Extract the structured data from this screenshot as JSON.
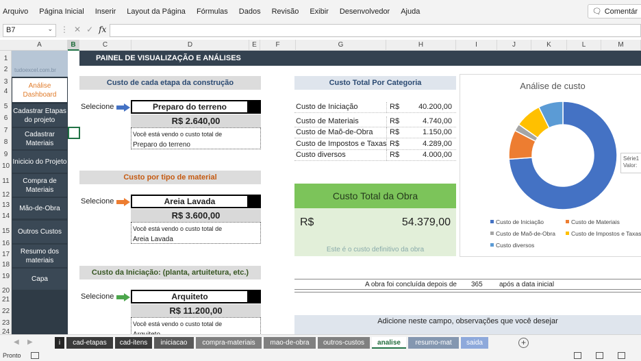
{
  "menu": [
    "Arquivo",
    "Página Inicial",
    "Inserir",
    "Layout da Página",
    "Fórmulas",
    "Dados",
    "Revisão",
    "Exibir",
    "Desenvolvedor",
    "Ajuda"
  ],
  "comments_label": "Comentár",
  "namebox": "B7",
  "fx_label": "fx",
  "columns": [
    {
      "l": "A",
      "sel": false
    },
    {
      "l": "B",
      "sel": true
    },
    {
      "l": "C",
      "sel": false
    },
    {
      "l": "D",
      "sel": false
    },
    {
      "l": "E",
      "sel": false
    },
    {
      "l": "F",
      "sel": false
    },
    {
      "l": "G",
      "sel": false
    },
    {
      "l": "H",
      "sel": false
    },
    {
      "l": "I",
      "sel": false
    },
    {
      "l": "J",
      "sel": false
    },
    {
      "l": "K",
      "sel": false
    },
    {
      "l": "L",
      "sel": false
    },
    {
      "l": "M",
      "sel": false
    }
  ],
  "rows": [
    "1",
    "2",
    "3",
    "4",
    "5",
    "6",
    "7",
    "8",
    "9",
    "10",
    "11",
    "12",
    "13",
    "14",
    "15",
    "16",
    "17",
    "18",
    "19",
    "20",
    "21",
    "22",
    "23",
    "24"
  ],
  "sidebar": {
    "logo": "tudoexcel.com.br",
    "items": [
      "Análise Dashboard",
      "Cadastrar Etapas do projeto",
      "Cadastrar Materiais",
      "Inicicio do Projeto",
      "Compra de Materiais",
      "Mão-de-Obra",
      "Outros Custos",
      "Resumo dos materiais",
      "Capa"
    ]
  },
  "banner": "PAINEL DE VISUALIZAÇÃO E ANÁLISES",
  "sections": [
    {
      "title": "Custo de cada etapa da construção",
      "color": "#2b4a72",
      "selecione": "Selecione",
      "arrow": "#4472c4",
      "selected": "Preparo do terreno",
      "value": "R$ 2.640,00",
      "note1": "Você está vendo o custo total de",
      "note2": "Preparo do terreno"
    },
    {
      "title": "Custo por tipo de material",
      "color": "#c55a11",
      "selecione": "Selecione",
      "arrow": "#ed7d31",
      "selected": "Areia Lavada",
      "value": "R$ 3.600,00",
      "note1": "Você está vendo o custo total de",
      "note2": "Areia Lavada"
    },
    {
      "title": "Custo da Iniciação: (planta, artuitetura, etc.)",
      "color": "#375623",
      "selecione": "Selecione",
      "arrow": "#4ca64c",
      "selected": "Arquiteto",
      "value": "R$ 11.200,00",
      "note1": "Você está vendo o custo total de",
      "note2": "Arquiteto"
    }
  ],
  "categories": {
    "title": "Custo Total Por Categoria",
    "rows": [
      {
        "label": "Custo de Iniciação",
        "cur": "R$",
        "amount": "40.200,00"
      },
      {
        "label": "Custo de Materiais",
        "cur": "R$",
        "amount": "4.740,00"
      },
      {
        "label": "Custo de Maõ-de-Obra",
        "cur": "R$",
        "amount": "1.150,00"
      },
      {
        "label": "Custo de Impostos e Taxas",
        "cur": "R$",
        "amount": "4.289,00"
      },
      {
        "label": "Custo diversos",
        "cur": "R$",
        "amount": "4.000,00"
      }
    ]
  },
  "total": {
    "title": "Custo Total da Obra",
    "cur": "R$",
    "amount": "54.379,00",
    "note": "Este é o custo definitivo da obra"
  },
  "chart_data": {
    "type": "pie",
    "title": "Análise de custo",
    "categories": [
      "Custo de Iniciação",
      "Custo de Materiais",
      "Custo de Maõ-de-Obra",
      "Custo de Impostos e Taxas",
      "Custo diversos"
    ],
    "values": [
      40200,
      4740,
      1150,
      4289,
      4000
    ],
    "colors": [
      "#4472c4",
      "#ed7d31",
      "#a5a5a5",
      "#ffc000",
      "#5b9bd5"
    ],
    "donut": true,
    "legend": "bottom",
    "tooltip_1": "Série1 P",
    "tooltip_2": "Valor: "
  },
  "done": {
    "text": "A obra foi concluída depois de",
    "days": "365",
    "after": "após a data inicial"
  },
  "obs": "Adicione neste campo, observações que você desejar",
  "tabs": [
    {
      "label": "i",
      "bg": "#262626",
      "w": 14
    },
    {
      "label": "cad-etapas",
      "bg": "#3a3a3a",
      "w": 68
    },
    {
      "label": "cad-itens",
      "bg": "#3a3a3a",
      "w": 54
    },
    {
      "label": "iniciacao",
      "bg": "#595959",
      "w": 58
    },
    {
      "label": "compra-materiais",
      "bg": "#7f7f7f",
      "w": 96
    },
    {
      "label": "mao-de-obra",
      "bg": "#808080",
      "w": 76
    },
    {
      "label": "outros-custos",
      "bg": "#808080",
      "w": 76
    },
    {
      "label": "analise",
      "bg": "#ffffff",
      "w": 50,
      "active": true
    },
    {
      "label": "resumo-mat",
      "bg": "#8497b0",
      "w": 74
    },
    {
      "label": "saida",
      "bg": "#8ea9db",
      "w": 40
    }
  ],
  "status": "Pronto"
}
